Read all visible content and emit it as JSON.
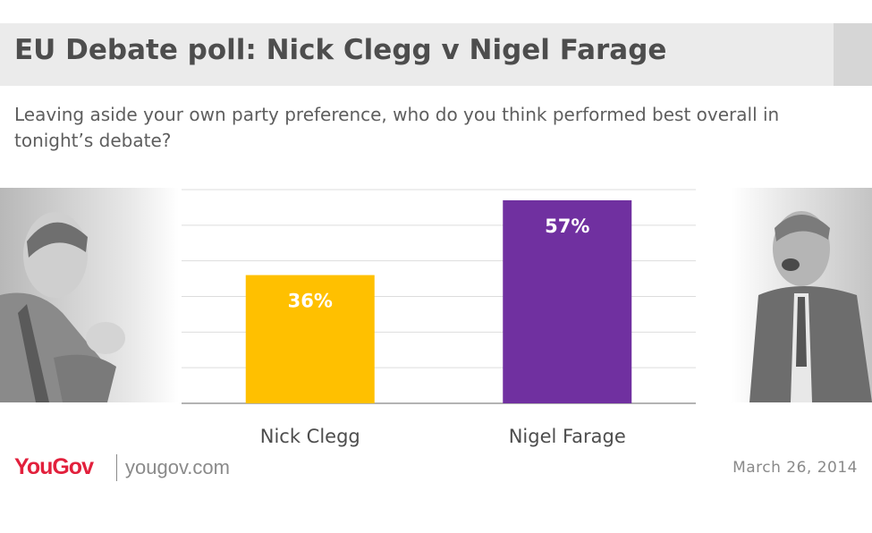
{
  "header": {
    "title": "EU Debate poll: Nick Clegg v Nigel Farage",
    "subtitle": "Leaving aside your own party preference, who do you think performed best overall in tonight’s debate?"
  },
  "chart_data": {
    "type": "bar",
    "categories": [
      "Nick Clegg",
      "Nigel Farage"
    ],
    "values": [
      36,
      57
    ],
    "value_labels": [
      "36%",
      "57%"
    ],
    "ylim": [
      0,
      60
    ],
    "grid": true,
    "colors": [
      "#ffc000",
      "#7030a0"
    ]
  },
  "footer": {
    "brand": "YouGov",
    "site": "yougov.com",
    "date": "March 26, 2014"
  }
}
